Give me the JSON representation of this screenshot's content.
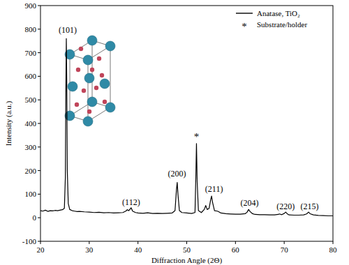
{
  "chart_data": {
    "type": "line",
    "x_label": "Diffraction Angle (2Θ)",
    "y_label": "Intensity (a.u.)",
    "x": [
      20,
      20.5,
      21,
      21.5,
      22,
      22.5,
      23,
      23.5,
      24,
      24.5,
      24.9,
      25.1,
      25.2,
      25.3,
      25.4,
      25.5,
      25.7,
      26,
      26.5,
      27,
      27.5,
      28,
      29,
      30,
      31,
      32,
      33,
      34,
      35,
      36,
      36.9,
      37.5,
      37.8,
      38.1,
      38.6,
      38.9,
      39.5,
      40,
      41,
      42,
      43,
      44,
      45,
      46,
      47,
      47.6,
      47.9,
      48.05,
      48.2,
      48.5,
      49,
      50,
      51,
      51.7,
      51.9,
      52,
      52.15,
      52.4,
      53,
      53.6,
      53.9,
      54.2,
      54.6,
      54.9,
      55.1,
      55.3,
      55.7,
      56.3,
      56.6,
      57,
      58,
      59,
      60,
      61,
      62,
      62.4,
      62.7,
      63,
      63.5,
      64,
      65,
      66,
      67,
      68,
      68.8,
      69,
      69.5,
      70,
      70.3,
      70.6,
      71,
      72,
      73,
      74,
      74.6,
      75,
      75.3,
      76,
      77,
      78,
      79,
      80
    ],
    "series": [
      {
        "name": "Anatase, TiO₂",
        "color": "#000000",
        "line_style": "solid",
        "values": [
          30,
          28,
          32,
          27,
          30,
          29,
          31,
          30,
          32,
          34,
          40,
          170,
          510,
          760,
          560,
          200,
          60,
          35,
          30,
          28,
          26,
          27,
          25,
          24,
          22,
          23,
          21,
          22,
          20,
          21,
          22,
          28,
          34,
          30,
          42,
          28,
          22,
          20,
          19,
          21,
          18,
          19,
          18,
          19,
          20,
          30,
          120,
          150,
          100,
          30,
          22,
          20,
          18,
          22,
          200,
          315,
          150,
          30,
          22,
          35,
          52,
          35,
          40,
          75,
          92,
          65,
          30,
          28,
          25,
          20,
          17,
          16,
          15,
          15,
          17,
          24,
          35,
          26,
          17,
          14,
          13,
          13,
          12,
          12,
          14,
          16,
          13,
          18,
          24,
          17,
          12,
          11,
          11,
          12,
          16,
          24,
          17,
          12,
          10,
          9,
          8,
          8
        ]
      }
    ],
    "legend_entries": [
      {
        "symbol": "*",
        "text": "Substrate/holder"
      }
    ],
    "annotations": [
      {
        "text": "(101)",
        "x": 25.6,
        "y": 785
      },
      {
        "text": "(112)",
        "x": 38.6,
        "y": 55
      },
      {
        "text": "(200)",
        "x": 48.0,
        "y": 175
      },
      {
        "text": "*",
        "x": 52.0,
        "y": 330
      },
      {
        "text": "(211)",
        "x": 55.6,
        "y": 110
      },
      {
        "text": "(204)",
        "x": 62.9,
        "y": 50
      },
      {
        "text": "(220)",
        "x": 70.3,
        "y": 35
      },
      {
        "text": "(215)",
        "x": 75.2,
        "y": 35
      }
    ],
    "xlim": [
      20,
      80
    ],
    "xticks": [
      20,
      30,
      40,
      50,
      60,
      70,
      80
    ],
    "ylim": [
      -100,
      900
    ],
    "yticks": [
      -100,
      0,
      100,
      200,
      300,
      400,
      500,
      600,
      700,
      800,
      900
    ],
    "grid": false,
    "legend": "upper right"
  }
}
